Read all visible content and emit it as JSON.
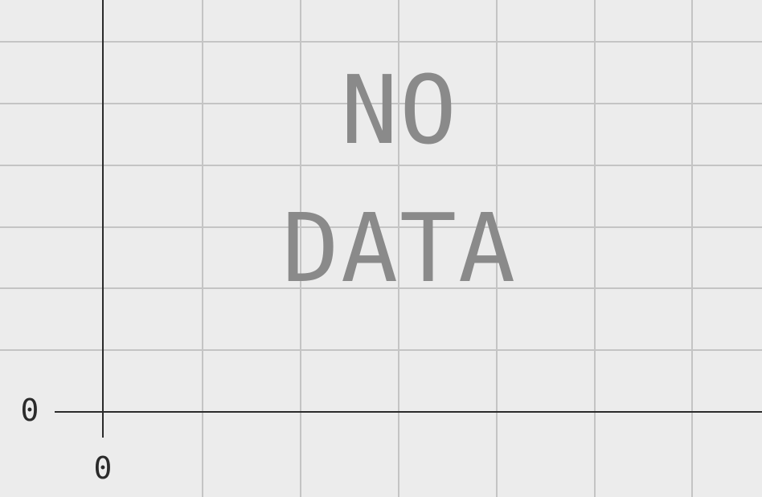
{
  "chart_data": {
    "type": "line",
    "title": "",
    "xlabel": "",
    "ylabel": "",
    "series": [],
    "empty_message_lines": [
      "NO",
      "DATA"
    ],
    "x_ticks": [
      "0"
    ],
    "y_ticks": [
      "0"
    ],
    "grid": true
  },
  "colors": {
    "background": "#ececec",
    "grid": "#c4c4c4",
    "axis": "#2b2b2b",
    "empty_message": "#8a8a8a"
  }
}
